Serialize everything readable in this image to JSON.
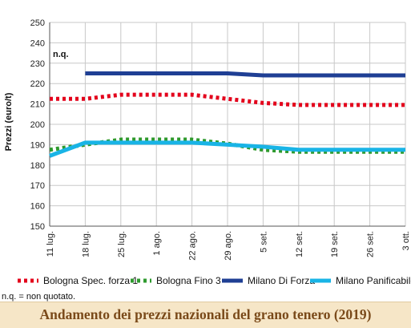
{
  "chart_data": {
    "type": "line",
    "ylabel": "Prezzi (euro/t)",
    "xlabel": "",
    "ylim": [
      150,
      250
    ],
    "yticks": [
      150,
      160,
      170,
      180,
      190,
      200,
      210,
      220,
      230,
      240,
      250
    ],
    "categories": [
      "11 lug.",
      "18 lug.",
      "25 lug.",
      "1 ago.",
      "22 ago.",
      "29 ago.",
      "5 set.",
      "12 set.",
      "19 set.",
      "26 set.",
      "3 ott."
    ],
    "grid": true,
    "legend_position": "bottom",
    "annotation": "n.q.",
    "series": [
      {
        "name": "Bologna Spec. forza 1",
        "color": "#e3001b",
        "style": "dotted",
        "values": [
          212.5,
          212.5,
          214.5,
          214.5,
          214.5,
          212.5,
          210.5,
          209.5,
          209.5,
          209.5,
          209.5
        ]
      },
      {
        "name": "Bologna Fino 3",
        "color": "#2e9a2e",
        "style": "dotted",
        "values": [
          187.5,
          190,
          192.5,
          192.5,
          192.5,
          190.5,
          187.5,
          186.5,
          186.5,
          186.5,
          186.5
        ]
      },
      {
        "name": "Milano Di Forza",
        "color": "#1f3f94",
        "style": "solid",
        "values": [
          null,
          225,
          225,
          225,
          225,
          225,
          224,
          224,
          224,
          224,
          224
        ]
      },
      {
        "name": "Milano Panificabile",
        "color": "#19b4e6",
        "style": "solid",
        "values": [
          184.5,
          191,
          191,
          191,
          191,
          190,
          189,
          187.5,
          187.5,
          187.5,
          187.5
        ]
      }
    ]
  },
  "note": "n.q. = non quotato.",
  "caption": "Andamento dei prezzi nazionali del grano tenero (2019)"
}
